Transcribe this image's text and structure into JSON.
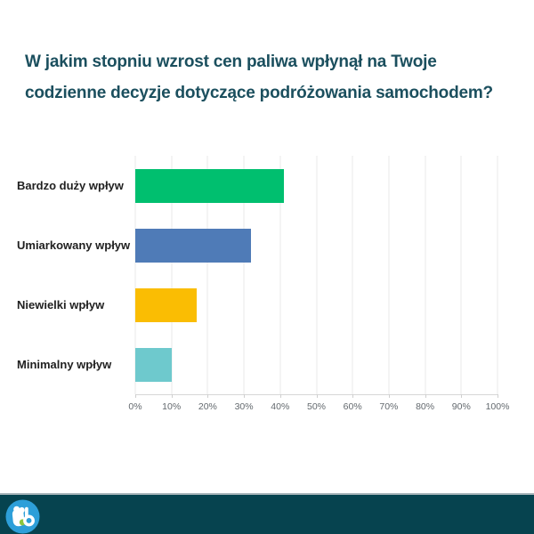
{
  "title": {
    "line1": "W jakim stopniu wzrost cen paliwa wpłynął na Twoje",
    "line2": "codzienne decyzje dotyczące podróżowania samochodem?"
  },
  "chart_data": {
    "type": "bar",
    "orientation": "horizontal",
    "title": "W jakim stopniu wzrost cen paliwa wpłynął na Twoje codzienne decyzje dotyczące podróżowania samochodem?",
    "categories": [
      "Bardzo duży wpływ",
      "Umiarkowany wpływ",
      "Niewielki wpływ",
      "Minimalny wpływ"
    ],
    "values": [
      41,
      32,
      17,
      10
    ],
    "unit": "%",
    "bar_colors": [
      "#00BF6F",
      "#4F7BB7",
      "#FABD03",
      "#6EC9CD"
    ],
    "x_ticks": [
      "0%",
      "10%",
      "20%",
      "30%",
      "40%",
      "50%",
      "60%",
      "70%",
      "80%",
      "90%",
      "100%"
    ],
    "xlim": [
      0,
      100
    ],
    "grid": true,
    "legend": "none",
    "xlabel": "",
    "ylabel": ""
  },
  "colors": {
    "title_text": "#1B4F5E",
    "category_label": "#212121",
    "gridline": "#EAEAEA",
    "axis_line": "#D7D7D7",
    "tick_label": "#63696E",
    "footer_bar": "#06434F",
    "footer_separator": "#A9B6BB"
  },
  "branding": {
    "logo": "bb-bubble-logo",
    "logo_circle_color": "#2D9FD9",
    "logo_shape_color": "#FFFFFF",
    "logo_accent_color": "#8DC63F"
  }
}
